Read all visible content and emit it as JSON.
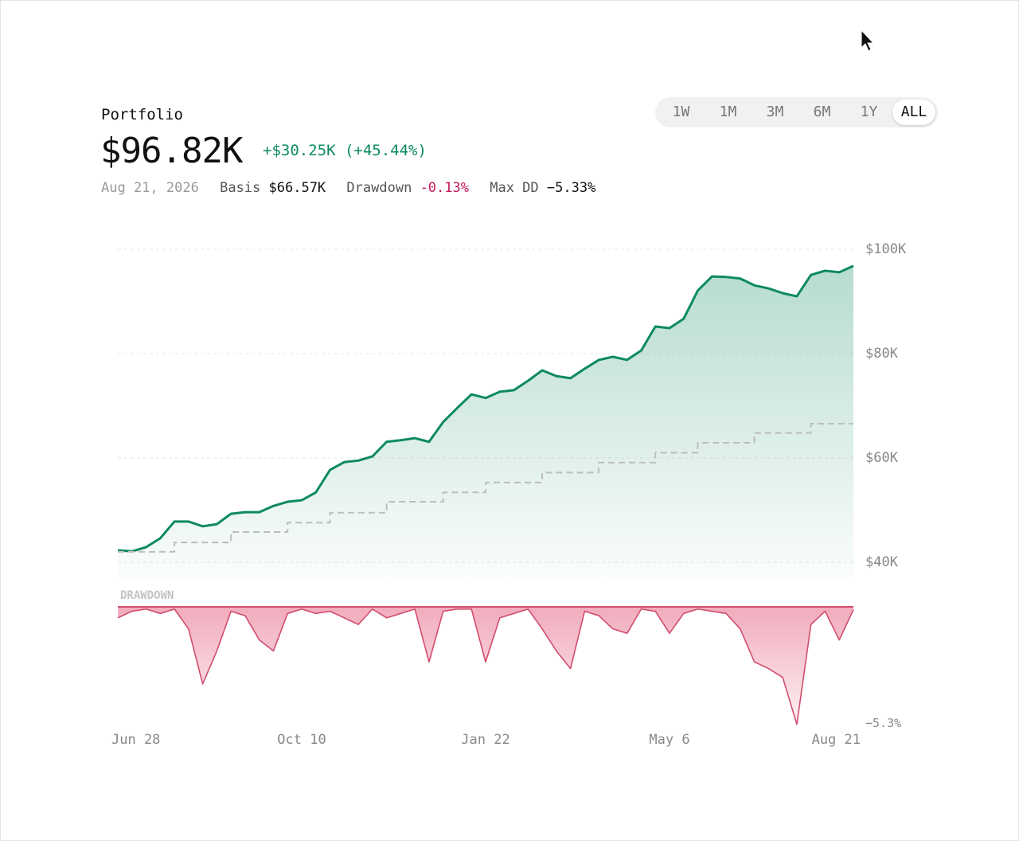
{
  "header": {
    "label": "Portfolio",
    "value": "$96.82K",
    "change": "+$30.25K (+45.44%)",
    "date": "Aug 21, 2026",
    "basis_label": "Basis",
    "basis": "$66.57K",
    "drawdown_label": "Drawdown",
    "drawdown": "-0.13%",
    "maxdd_label": "Max DD",
    "maxdd": "−5.33%"
  },
  "ranges": [
    "1W",
    "1M",
    "3M",
    "6M",
    "1Y",
    "ALL"
  ],
  "active_range": 5,
  "chart_data": {
    "type": "line",
    "categories": [
      "Jun 28",
      null,
      null,
      null,
      null,
      null,
      null,
      null,
      null,
      null,
      null,
      null,
      null,
      "Oct 10",
      null,
      null,
      null,
      null,
      null,
      null,
      null,
      null,
      null,
      null,
      null,
      null,
      "Jan 22",
      null,
      null,
      null,
      null,
      null,
      null,
      null,
      null,
      null,
      null,
      null,
      null,
      "May 6",
      null,
      null,
      null,
      null,
      null,
      null,
      null,
      null,
      null,
      null,
      null,
      null,
      "Aug 21"
    ],
    "series": [
      {
        "color": "#0e8a5f",
        "fill": true,
        "values": [
          42300,
          42100,
          42900,
          44600,
          47800,
          47800,
          46900,
          47300,
          49300,
          49600,
          49600,
          50800,
          51600,
          51900,
          53400,
          57700,
          59200,
          59500,
          60300,
          63100,
          63400,
          63800,
          63100,
          66900,
          69600,
          72200,
          71500,
          72700,
          73000,
          74800,
          76800,
          75700,
          75300,
          77100,
          78800,
          79400,
          78800,
          80600,
          85200,
          84900,
          86700,
          92100,
          94800,
          94700,
          94400,
          93100,
          92500,
          91600,
          91000,
          95100,
          95900,
          95600,
          96820
        ]
      },
      {
        "color": "#bdbdbd",
        "dashed": true,
        "step": true,
        "values": [
          42000,
          42000,
          42000,
          42000,
          43800,
          43800,
          43800,
          43800,
          45800,
          45800,
          45800,
          45800,
          47600,
          47600,
          47600,
          49500,
          49500,
          49500,
          49500,
          51600,
          51600,
          51600,
          51600,
          53400,
          53400,
          53400,
          55300,
          55300,
          55300,
          55300,
          57200,
          57200,
          57200,
          57200,
          59100,
          59100,
          59100,
          59100,
          61000,
          61000,
          61000,
          62900,
          62900,
          62900,
          62900,
          64800,
          64800,
          64800,
          64800,
          66570,
          66570,
          66570,
          66570
        ]
      },
      {
        "color": "#d14d6e",
        "axis": "y2",
        "fill": true,
        "values": [
          -0.5,
          -0.2,
          -0.1,
          -0.3,
          -0.1,
          -1.0,
          -3.5,
          -2.0,
          -0.2,
          -0.4,
          -1.5,
          -2.0,
          -0.3,
          -0.1,
          -0.3,
          -0.2,
          -0.5,
          -0.8,
          -0.1,
          -0.5,
          -0.3,
          -0.1,
          -2.5,
          -0.2,
          -0.1,
          -0.1,
          -2.5,
          -0.5,
          -0.3,
          -0.1,
          -1.0,
          -2.0,
          -2.8,
          -0.2,
          -0.4,
          -1.0,
          -1.2,
          -0.1,
          -0.2,
          -1.2,
          -0.3,
          -0.1,
          -0.2,
          -0.3,
          -1.0,
          -2.5,
          -2.8,
          -3.2,
          -5.33,
          -0.8,
          -0.2,
          -1.5,
          -0.13
        ]
      }
    ],
    "ylim": [
      37100,
      102000
    ],
    "yticks": [
      {
        "value": 40000,
        "label": "$40K"
      },
      {
        "value": 60000,
        "label": "$60K"
      },
      {
        "value": 80000,
        "label": "$80K"
      },
      {
        "value": 100000,
        "label": "$100K"
      }
    ],
    "grid": true,
    "y2_label": "DRAWDOWN",
    "y2lim": [
      -5.35,
      0
    ],
    "y2ticks": [
      {
        "value": -5.3,
        "label": "−5.3%"
      }
    ]
  }
}
